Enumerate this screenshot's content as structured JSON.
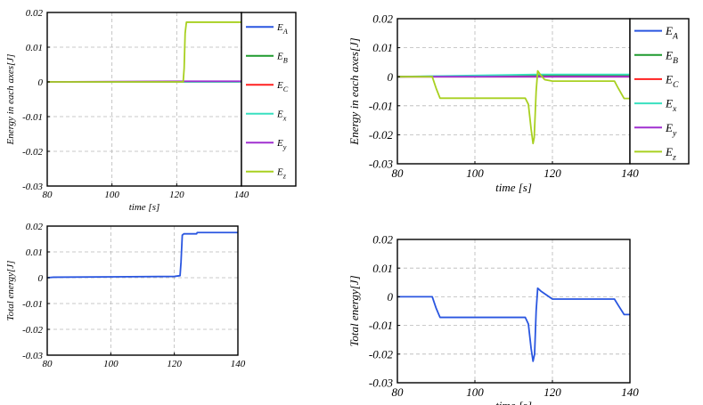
{
  "chart_data": [
    {
      "type": "line",
      "title": "",
      "xlabel": "time [s]",
      "ylabel": "Energy in each axes[J]",
      "xlim": [
        80,
        140
      ],
      "ylim": [
        -0.03,
        0.02
      ],
      "xticks": [
        "80",
        "100",
        "120",
        "140"
      ],
      "yticks": [
        "0.02",
        "0.01",
        "0",
        "-0.01",
        "-0.02",
        "-0.03"
      ],
      "grid": true,
      "legend": "outside-right",
      "series": [
        {
          "name": "E_A",
          "label": "E",
          "sub": "A",
          "color": "#2a56e0",
          "x": [
            80,
            122.5,
            140
          ],
          "y": [
            0,
            0,
            0
          ]
        },
        {
          "name": "E_B",
          "label": "E",
          "sub": "B",
          "color": "#1f9a2e",
          "x": [
            80,
            140
          ],
          "y": [
            0,
            0
          ]
        },
        {
          "name": "E_C",
          "label": "E",
          "sub": "C",
          "color": "#ff2020",
          "x": [
            80,
            140
          ],
          "y": [
            0,
            0
          ]
        },
        {
          "name": "E_x",
          "label": "E",
          "sub": "x",
          "color": "#39e0c0",
          "x": [
            80,
            140
          ],
          "y": [
            0,
            0
          ]
        },
        {
          "name": "E_y",
          "label": "E",
          "sub": "y",
          "color": "#a030d0",
          "x": [
            80,
            122.5,
            140
          ],
          "y": [
            0,
            0.0002,
            0.0002
          ]
        },
        {
          "name": "E_z",
          "label": "E",
          "sub": "z",
          "color": "#a8d020",
          "x": [
            80,
            122,
            122.3,
            122.6,
            123,
            140
          ],
          "y": [
            0,
            0,
            0.004,
            0.014,
            0.0172,
            0.0172
          ]
        }
      ]
    },
    {
      "type": "line",
      "title": "",
      "xlabel": "time [s]",
      "ylabel": "Energy in each axes[J]",
      "xlim": [
        80,
        140
      ],
      "ylim": [
        -0.03,
        0.02
      ],
      "xticks": [
        "80",
        "100",
        "120",
        "140"
      ],
      "yticks": [
        "0.02",
        "0.01",
        "0",
        "-0.01",
        "-0.02",
        "-0.03"
      ],
      "grid": true,
      "legend": "outside-right",
      "series": [
        {
          "name": "E_A",
          "label": "E",
          "sub": "A",
          "color": "#2a56e0",
          "x": [
            80,
            116,
            140
          ],
          "y": [
            0,
            0.0005,
            0.0005
          ]
        },
        {
          "name": "E_B",
          "label": "E",
          "sub": "B",
          "color": "#1f9a2e",
          "x": [
            80,
            116,
            140
          ],
          "y": [
            0,
            0.0003,
            0.0003
          ]
        },
        {
          "name": "E_C",
          "label": "E",
          "sub": "C",
          "color": "#ff2020",
          "x": [
            80,
            140
          ],
          "y": [
            0,
            0
          ]
        },
        {
          "name": "E_x",
          "label": "E",
          "sub": "x",
          "color": "#39e0c0",
          "x": [
            80,
            116,
            140
          ],
          "y": [
            0,
            0.0008,
            0.0008
          ]
        },
        {
          "name": "E_y",
          "label": "E",
          "sub": "y",
          "color": "#a030d0",
          "x": [
            80,
            140
          ],
          "y": [
            0,
            0
          ]
        },
        {
          "name": "E_z",
          "label": "E",
          "sub": "z",
          "color": "#a8d020",
          "x": [
            80,
            89,
            90,
            91,
            113,
            113.8,
            114.5,
            115,
            115.3,
            115.8,
            116.2,
            117,
            118,
            120,
            136,
            137,
            138.5,
            140
          ],
          "y": [
            0,
            0,
            -0.004,
            -0.0074,
            -0.0074,
            -0.0095,
            -0.018,
            -0.023,
            -0.021,
            -0.005,
            0.002,
            0.0005,
            -0.001,
            -0.0015,
            -0.0015,
            -0.004,
            -0.0075,
            -0.0075
          ]
        }
      ]
    },
    {
      "type": "line",
      "title": "",
      "xlabel": "",
      "ylabel": "Total energy[J]",
      "xlim": [
        80,
        140
      ],
      "ylim": [
        -0.03,
        0.02
      ],
      "xticks": [
        "80",
        "100",
        "120",
        "140"
      ],
      "yticks": [
        "0.02",
        "0.01",
        "0",
        "-0.01",
        "-0.02",
        "-0.03"
      ],
      "grid": true,
      "series": [
        {
          "name": "total",
          "color": "#2a56e0",
          "x": [
            80,
            82,
            120,
            121.8,
            122.1,
            122.5,
            123,
            127,
            127.2,
            140
          ],
          "y": [
            0,
            0.0002,
            0.0005,
            0.0008,
            0.006,
            0.0165,
            0.017,
            0.017,
            0.0175,
            0.0175
          ]
        }
      ]
    },
    {
      "type": "line",
      "title": "",
      "xlabel": "time [s]",
      "ylabel": "Total energy[J]",
      "xlim": [
        80,
        140
      ],
      "ylim": [
        -0.03,
        0.02
      ],
      "xticks": [
        "80",
        "100",
        "120",
        "140"
      ],
      "yticks": [
        "0.02",
        "0.01",
        "0",
        "-0.01",
        "-0.02",
        "-0.03"
      ],
      "grid": true,
      "series": [
        {
          "name": "total",
          "color": "#2a56e0",
          "x": [
            80,
            89,
            90,
            91,
            113,
            113.8,
            114.5,
            115,
            115.4,
            115.8,
            116.2,
            117,
            120,
            136,
            137,
            138.5,
            140
          ],
          "y": [
            0,
            0,
            -0.004,
            -0.0072,
            -0.0072,
            -0.0095,
            -0.018,
            -0.0225,
            -0.02,
            -0.005,
            0.003,
            0.002,
            -0.0008,
            -0.0008,
            -0.003,
            -0.0062,
            -0.0062
          ]
        }
      ]
    }
  ]
}
